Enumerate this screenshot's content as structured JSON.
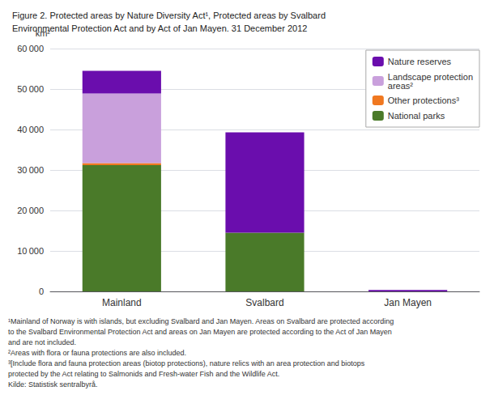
{
  "chart_data": {
    "type": "bar",
    "stacked": true,
    "title": "Figure 2. Protected areas by Nature Diversity Act¹, Protected areas by Svalbard\nEnvironmental Protection Act and by Act of Jan Mayen. 31 December 2012",
    "ylabel": "km²",
    "categories": [
      "Mainland",
      "Svalbard",
      "Jan Mayen"
    ],
    "series": [
      {
        "name": "National parks",
        "color": "#4a7a29",
        "values": [
          31200,
          14500,
          0
        ]
      },
      {
        "name": "Other protections³",
        "color": "#f07820",
        "values": [
          500,
          0,
          0
        ]
      },
      {
        "name": "Landscape protection\nareas²",
        "color": "#c9a0dc",
        "values": [
          17200,
          0,
          0
        ]
      },
      {
        "name": "Nature reserves",
        "color": "#6a0dad",
        "values": [
          5600,
          24800,
          370
        ]
      }
    ],
    "ylim": [
      0,
      60000
    ],
    "yticks": [
      0,
      {
        "value": 10000,
        "label": "10 000"
      },
      {
        "value": 20000,
        "label": "20 000"
      },
      {
        "value": 30000,
        "label": "30 000"
      },
      {
        "value": 40000,
        "label": "40 000"
      },
      {
        "value": 50000,
        "label": "50 000"
      },
      {
        "value": 60000,
        "label": "60 000"
      }
    ],
    "grid": true,
    "legend": "upper right",
    "annotations": [
      "¹Mainland of Norway is with islands, but excluding Svalbard and Jan Mayen. Areas on Svalbard are protected according",
      "to the Svalbard Environmental Protection Act and areas on Jan Mayen are protected according to the Act of Jan Mayen",
      "and are not included.",
      "²Areas with flora or fauna protections are also included.",
      "³[Include flora and fauna protection areas (biotop protections), nature relics with an area protection and biotops",
      "protected by the Act relating to Salmonids and Fresh-water Fish and the Wildlife Act.",
      "Kilde: Statistisk sentralbyrå."
    ]
  }
}
